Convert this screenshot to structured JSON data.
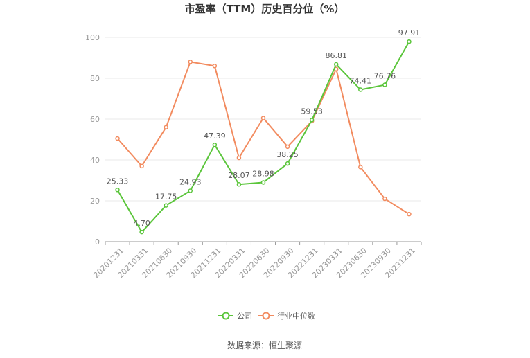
{
  "chart_data": {
    "type": "line",
    "title": "市盈率（TTM）历史百分位（%）",
    "categories": [
      "20201231",
      "20210331",
      "20210630",
      "20210930",
      "20211231",
      "20220331",
      "20220630",
      "20220930",
      "20221231",
      "20230331",
      "20230630",
      "20230930",
      "20231231"
    ],
    "series": [
      {
        "name": "公司",
        "color": "#5ac53a",
        "values": [
          25.33,
          4.7,
          17.75,
          24.93,
          47.39,
          28.07,
          28.98,
          38.25,
          59.53,
          86.81,
          74.41,
          76.76,
          97.91
        ],
        "labels": [
          "25.33",
          "4.70",
          "17.75",
          "24.93",
          "47.39",
          "28.07",
          "28.98",
          "38.25",
          "59.53",
          "86.81",
          "74.41",
          "76.76",
          "97.91"
        ]
      },
      {
        "name": "行业中位数",
        "color": "#f28b5f",
        "values": [
          50.5,
          37.0,
          56.0,
          88.0,
          86.0,
          41.0,
          60.5,
          46.5,
          59.0,
          84.5,
          36.5,
          21.0,
          13.5
        ]
      }
    ],
    "yticks": [
      "0",
      "20",
      "40",
      "60",
      "80",
      "100"
    ],
    "ylim": [
      0,
      100
    ],
    "grid": true,
    "legend": "bottom-center",
    "source": "数据来源：恒生聚源"
  }
}
